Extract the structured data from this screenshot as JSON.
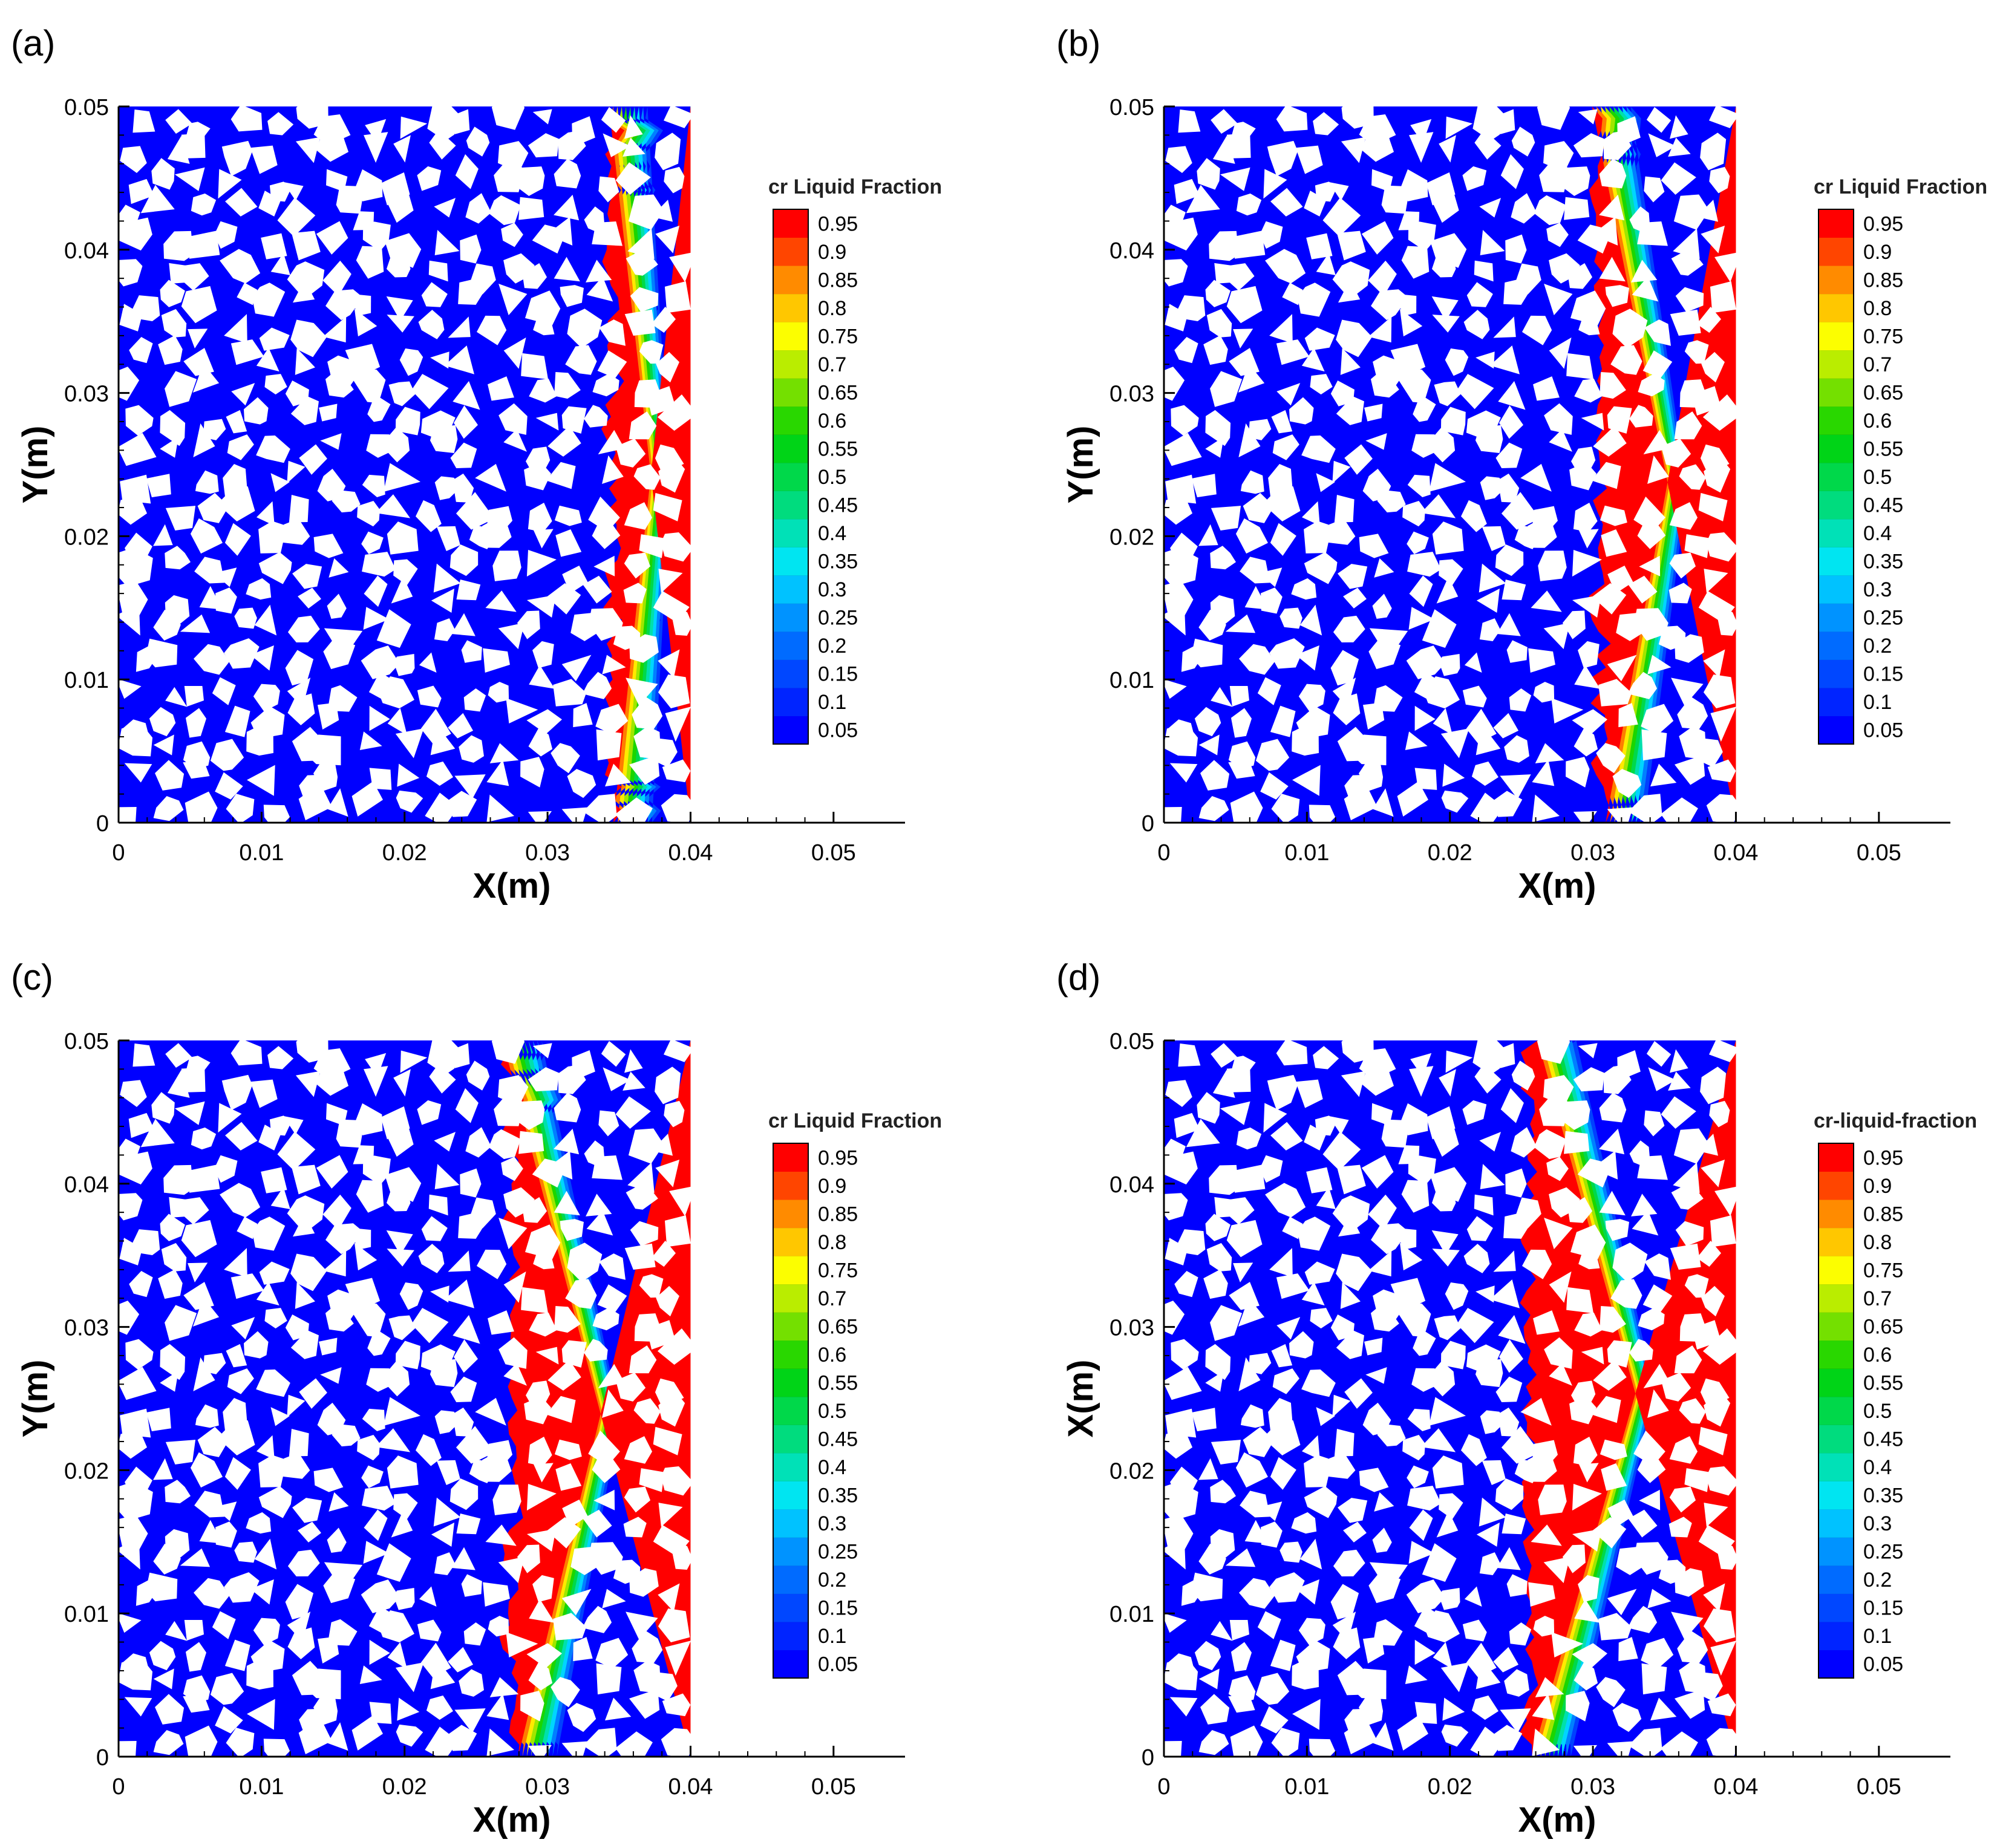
{
  "figure": {
    "description_colors": {
      "liquid": "#ff0000",
      "solid": "#0000ff",
      "particles": "#ffffff",
      "axis": "#000000"
    }
  },
  "chart_data": [
    {
      "type": "heatmap",
      "panel_label": "(a)",
      "title": "",
      "xlabel": "X(m)",
      "ylabel": "Y(m)",
      "xlim": [
        0,
        0.055
      ],
      "ylim": [
        0,
        0.05
      ],
      "domain_x_max": 0.04,
      "x_ticks": [
        "0",
        "0.01",
        "0.02",
        "0.03",
        "0.04",
        "0.05"
      ],
      "y_ticks": [
        "0",
        "0.01",
        "0.02",
        "0.03",
        "0.04",
        "0.05"
      ],
      "melt_front_x": 0.036,
      "legend_title": "cr Liquid Fraction",
      "legend_levels": [
        "0.05",
        "0.1",
        "0.15",
        "0.2",
        "0.25",
        "0.3",
        "0.35",
        "0.4",
        "0.45",
        "0.5",
        "0.55",
        "0.6",
        "0.65",
        "0.7",
        "0.75",
        "0.8",
        "0.85",
        "0.9",
        "0.95"
      ]
    },
    {
      "type": "heatmap",
      "panel_label": "(b)",
      "title": "",
      "xlabel": "X(m)",
      "ylabel": "Y(m)",
      "xlim": [
        0,
        0.055
      ],
      "ylim": [
        0,
        0.05
      ],
      "domain_x_max": 0.04,
      "x_ticks": [
        "0",
        "0.01",
        "0.02",
        "0.03",
        "0.04",
        "0.05"
      ],
      "y_ticks": [
        "0",
        "0.01",
        "0.02",
        "0.03",
        "0.04",
        "0.05"
      ],
      "melt_front_x": 0.032,
      "legend_title": "cr Liquid Fraction",
      "legend_levels": [
        "0.05",
        "0.1",
        "0.15",
        "0.2",
        "0.25",
        "0.3",
        "0.35",
        "0.4",
        "0.45",
        "0.5",
        "0.55",
        "0.6",
        "0.65",
        "0.7",
        "0.75",
        "0.8",
        "0.85",
        "0.9",
        "0.95"
      ]
    },
    {
      "type": "heatmap",
      "panel_label": "(c)",
      "title": "",
      "xlabel": "X(m)",
      "ylabel": "Y(m)",
      "xlim": [
        0,
        0.055
      ],
      "ylim": [
        0,
        0.05
      ],
      "domain_x_max": 0.04,
      "x_ticks": [
        "0",
        "0.01",
        "0.02",
        "0.03",
        "0.04",
        "0.05"
      ],
      "y_ticks": [
        "0",
        "0.01",
        "0.02",
        "0.03",
        "0.04",
        "0.05"
      ],
      "melt_front_x": 0.029,
      "legend_title": "cr Liquid Fraction",
      "legend_levels": [
        "0.05",
        "0.1",
        "0.15",
        "0.2",
        "0.25",
        "0.3",
        "0.35",
        "0.4",
        "0.45",
        "0.5",
        "0.55",
        "0.6",
        "0.65",
        "0.7",
        "0.75",
        "0.8",
        "0.85",
        "0.9",
        "0.95"
      ]
    },
    {
      "type": "heatmap",
      "panel_label": "(d)",
      "title": "",
      "xlabel": "X(m)",
      "ylabel": "X(m)",
      "xlim": [
        0,
        0.055
      ],
      "ylim": [
        0,
        0.05
      ],
      "domain_x_max": 0.04,
      "x_ticks": [
        "0",
        "0.01",
        "0.02",
        "0.03",
        "0.04",
        "0.05"
      ],
      "y_ticks": [
        "0",
        "0.01",
        "0.02",
        "0.03",
        "0.04",
        "0.05"
      ],
      "melt_front_x": 0.027,
      "legend_title": "cr-liquid-fraction",
      "legend_levels": [
        "0.05",
        "0.1",
        "0.15",
        "0.2",
        "0.25",
        "0.3",
        "0.35",
        "0.4",
        "0.45",
        "0.5",
        "0.55",
        "0.6",
        "0.65",
        "0.7",
        "0.75",
        "0.8",
        "0.85",
        "0.9",
        "0.95"
      ]
    }
  ]
}
